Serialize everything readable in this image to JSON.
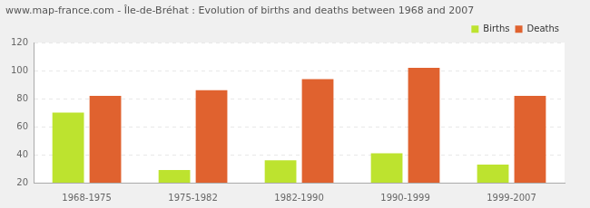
{
  "chart_data": {
    "type": "bar",
    "title": "www.map-france.com - Île-de-Bréhat : Evolution of births and deaths between 1968 and 2007",
    "categories": [
      "1968-1975",
      "1975-1982",
      "1982-1990",
      "1990-1999",
      "1999-2007"
    ],
    "series": [
      {
        "name": "Births",
        "color": "#bde32f",
        "values": [
          70,
          29,
          36,
          41,
          33
        ]
      },
      {
        "name": "Deaths",
        "color": "#e0622f",
        "values": [
          82,
          86,
          94,
          102,
          82
        ]
      }
    ],
    "ylim": [
      20,
      120
    ],
    "yticks": [
      20,
      40,
      60,
      80,
      100,
      120
    ],
    "grid": true,
    "legend": "upper right"
  }
}
